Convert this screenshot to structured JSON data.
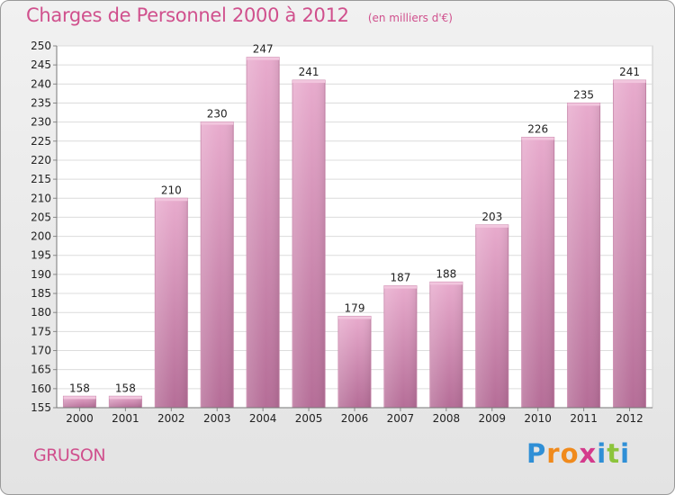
{
  "header": {
    "title": "Charges de Personnel 2000 à 2012",
    "unit": "(en milliers d'€)"
  },
  "footer": {
    "place": "GRUSON",
    "brand_letters": [
      "P",
      "r",
      "o",
      "x",
      "i",
      "t",
      "i"
    ],
    "brand_colors": [
      "#2f8fd6",
      "#f08a1c",
      "#f08a1c",
      "#d43a8c",
      "#2f8fd6",
      "#8cc43c",
      "#2f8fd6"
    ]
  },
  "chart_data": {
    "type": "bar",
    "categories": [
      "2000",
      "2001",
      "2002",
      "2003",
      "2004",
      "2005",
      "2006",
      "2007",
      "2008",
      "2009",
      "2010",
      "2011",
      "2012"
    ],
    "values": [
      158,
      158,
      210,
      230,
      247,
      241,
      179,
      187,
      188,
      203,
      226,
      235,
      241
    ],
    "value_labels": [
      "158",
      "158",
      "210",
      "230",
      "247",
      "241",
      "179",
      "187",
      "188",
      "203",
      "226",
      "235",
      "241"
    ],
    "ylim": [
      155,
      250
    ],
    "yticks": [
      "155",
      "160",
      "165",
      "170",
      "175",
      "180",
      "185",
      "190",
      "195",
      "200",
      "205",
      "210",
      "215",
      "220",
      "225",
      "230",
      "235",
      "240",
      "245",
      "250"
    ],
    "grid": true,
    "bar_color": "#d88ab5"
  }
}
